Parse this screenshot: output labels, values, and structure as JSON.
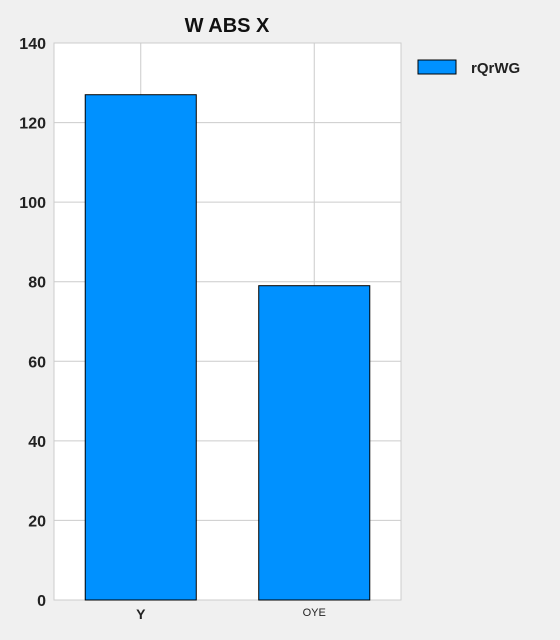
{
  "chart_data": {
    "type": "bar",
    "title": "W ABS  X",
    "xlabel": "",
    "ylabel": "",
    "categories": [
      "Y",
      "OYE"
    ],
    "series": [
      {
        "name": "rQrWG",
        "values": [
          127,
          79
        ],
        "color": "#0091ff"
      }
    ],
    "ylim": [
      0,
      140
    ],
    "yticks": [
      0,
      20,
      40,
      60,
      80,
      100,
      120,
      140
    ],
    "grid": true,
    "legend": "top-right"
  }
}
